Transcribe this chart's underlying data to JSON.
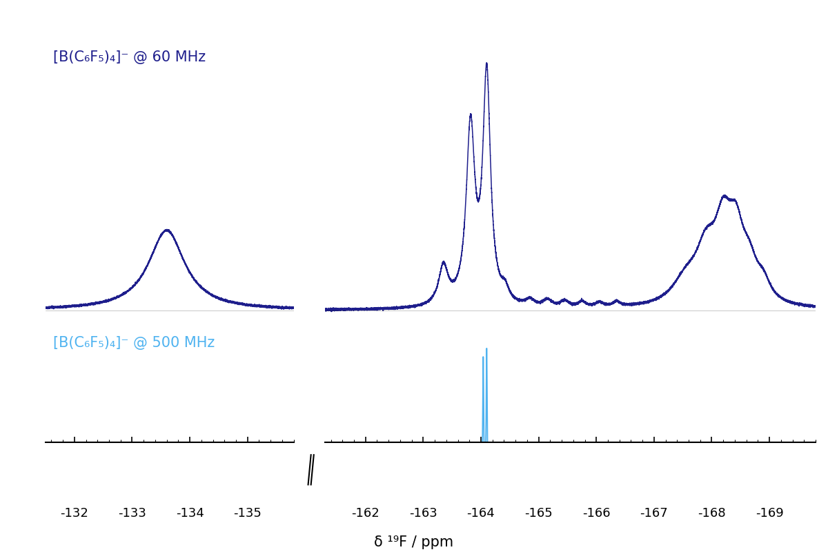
{
  "background_color": "#ffffff",
  "label_60mhz": "[B(C₆F₅)₄]⁻ @ 60 MHz",
  "label_500mhz": "[B(C₆F₅)₄]⁻ @ 500 MHz",
  "color_60mhz": "#1e1e8c",
  "color_500mhz": "#4fb3f0",
  "xlabel": "δ ¹⁹F / ppm",
  "seg1_xlim": [
    -131.5,
    -135.8
  ],
  "seg2_xlim": [
    -161.3,
    -169.8
  ],
  "tick_labels_seg1": [
    -132,
    -133,
    -134,
    -135
  ],
  "tick_labels_seg2": [
    -162,
    -163,
    -164,
    -165,
    -166,
    -167,
    -168,
    -169
  ]
}
